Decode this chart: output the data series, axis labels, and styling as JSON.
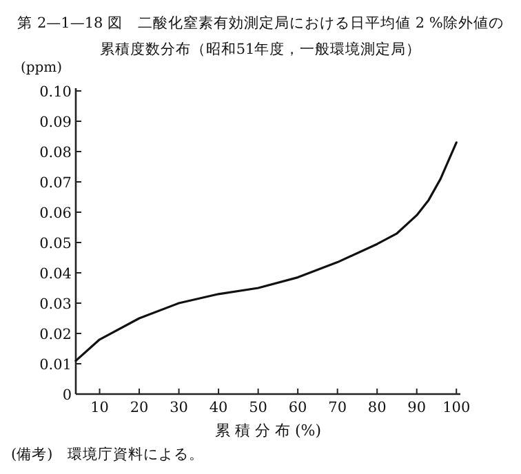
{
  "chart_data": {
    "type": "line",
    "title": "第 2—1—18 図　二酸化窒素有効測定局における日平均値 2 %除外値の",
    "subtitle": "累積度数分布（昭和51年度，一般環境測定局）",
    "xlabel": "累 積 分 布 (%)",
    "ylabel": "(ppm)",
    "annotations": [
      "(備考)　環境庁資料による。"
    ],
    "x": [
      4,
      10,
      20,
      30,
      40,
      50,
      60,
      70,
      80,
      85,
      90,
      93,
      96,
      100
    ],
    "values": [
      0.011,
      0.018,
      0.025,
      0.03,
      0.033,
      0.035,
      0.0385,
      0.0435,
      0.0495,
      0.053,
      0.059,
      0.064,
      0.071,
      0.083
    ],
    "color": "#111111",
    "marker": "none",
    "line_style": "solid",
    "xlim": [
      4,
      101
    ],
    "ylim": [
      0,
      0.1
    ],
    "xticks": [
      10,
      20,
      30,
      40,
      50,
      60,
      70,
      80,
      90,
      100
    ],
    "yticks": [
      0,
      0.01,
      0.02,
      0.03,
      0.04,
      0.05,
      0.06,
      0.07,
      0.08,
      0.09,
      {
        "value": 0.1,
        "label": "0.10"
      }
    ]
  }
}
